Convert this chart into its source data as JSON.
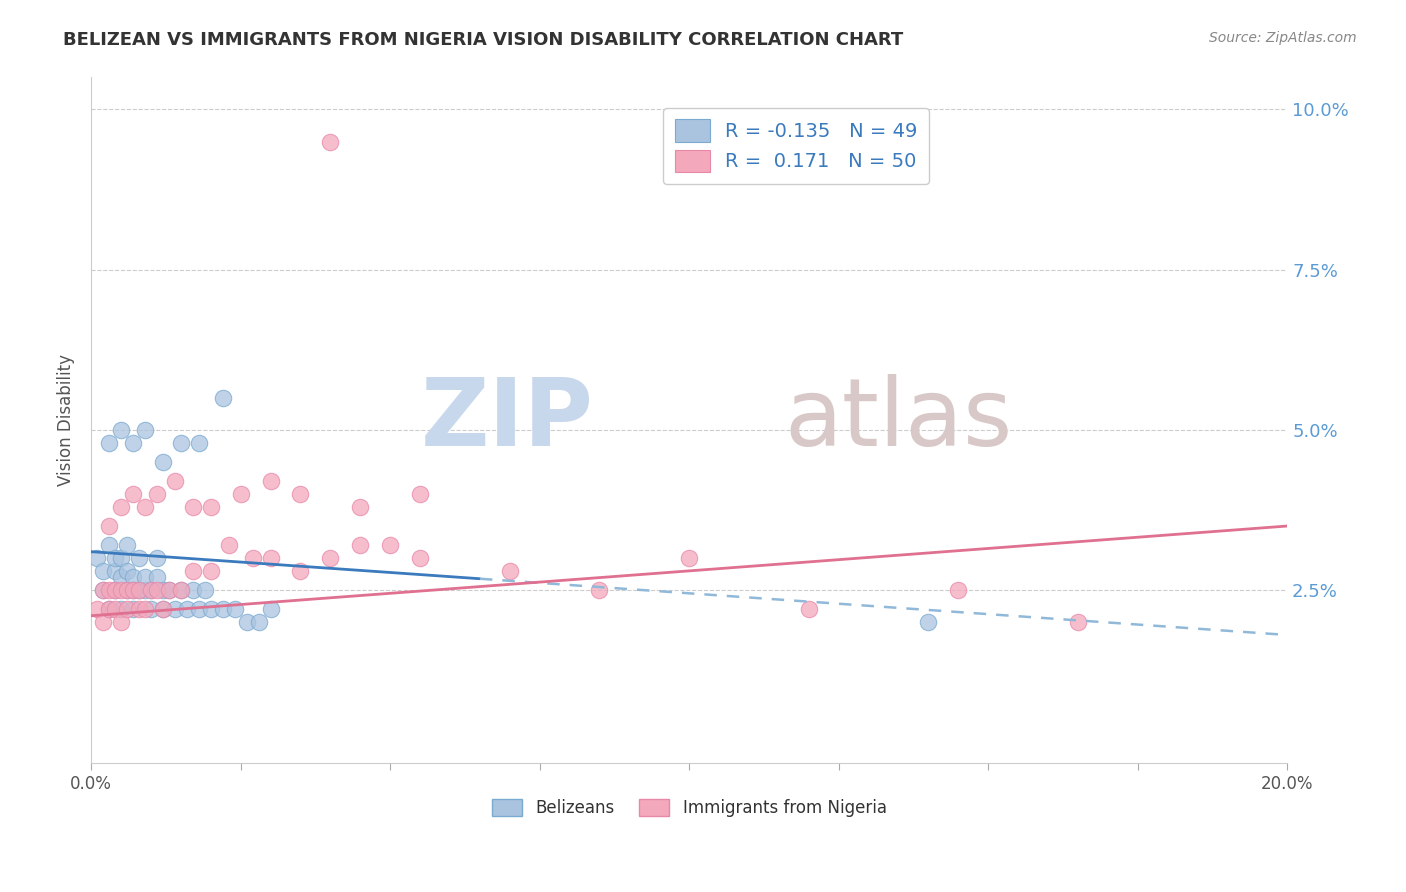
{
  "title": "BELIZEAN VS IMMIGRANTS FROM NIGERIA VISION DISABILITY CORRELATION CHART",
  "source": "Source: ZipAtlas.com",
  "ylabel": "Vision Disability",
  "watermark_zip": "ZIP",
  "watermark_atlas": "atlas",
  "series1_name": "Belizeans",
  "series1_color": "#aac4e0",
  "series1_edge": "#7aaad0",
  "series1_R": -0.135,
  "series1_N": 49,
  "series2_name": "Immigrants from Nigeria",
  "series2_color": "#f4a8bc",
  "series2_edge": "#e888a8",
  "series2_R": 0.171,
  "series2_N": 50,
  "line1_color": "#3a7abd",
  "line1_dash_color": "#90b8d8",
  "line2_color": "#e07090",
  "xlim": [
    0.0,
    0.2
  ],
  "ylim": [
    -0.002,
    0.105
  ],
  "xtick_positions": [
    0.0,
    0.025,
    0.05,
    0.075,
    0.1,
    0.125,
    0.15,
    0.175,
    0.2
  ],
  "xtick_labels": [
    "0.0%",
    "",
    "",
    "",
    "",
    "",
    "",
    "",
    "20.0%"
  ],
  "ytick_vals": [
    0.025,
    0.05,
    0.075,
    0.1
  ],
  "ytick_labels": [
    "2.5%",
    "5.0%",
    "7.5%",
    "10.0%"
  ],
  "background_color": "#ffffff",
  "grid_color": "#cccccc",
  "title_color": "#333333",
  "source_color": "#888888",
  "belizean_x": [
    0.001,
    0.002,
    0.002,
    0.003,
    0.003,
    0.004,
    0.004,
    0.004,
    0.005,
    0.005,
    0.005,
    0.006,
    0.006,
    0.006,
    0.007,
    0.007,
    0.007,
    0.008,
    0.008,
    0.009,
    0.009,
    0.01,
    0.01,
    0.011,
    0.011,
    0.012,
    0.012,
    0.013,
    0.014,
    0.015,
    0.016,
    0.017,
    0.018,
    0.019,
    0.02,
    0.022,
    0.024,
    0.026,
    0.028,
    0.03,
    0.003,
    0.005,
    0.007,
    0.009,
    0.012,
    0.015,
    0.018,
    0.022,
    0.14
  ],
  "belizean_y": [
    0.03,
    0.028,
    0.025,
    0.032,
    0.022,
    0.025,
    0.028,
    0.03,
    0.027,
    0.03,
    0.022,
    0.025,
    0.028,
    0.032,
    0.027,
    0.025,
    0.022,
    0.025,
    0.03,
    0.025,
    0.027,
    0.022,
    0.025,
    0.027,
    0.03,
    0.025,
    0.022,
    0.025,
    0.022,
    0.025,
    0.022,
    0.025,
    0.022,
    0.025,
    0.022,
    0.022,
    0.022,
    0.02,
    0.02,
    0.022,
    0.048,
    0.05,
    0.048,
    0.05,
    0.045,
    0.048,
    0.048,
    0.055,
    0.02
  ],
  "nigeria_x": [
    0.001,
    0.002,
    0.002,
    0.003,
    0.003,
    0.004,
    0.004,
    0.005,
    0.005,
    0.006,
    0.006,
    0.007,
    0.008,
    0.008,
    0.009,
    0.01,
    0.011,
    0.012,
    0.013,
    0.015,
    0.017,
    0.02,
    0.023,
    0.027,
    0.03,
    0.035,
    0.04,
    0.045,
    0.05,
    0.055,
    0.003,
    0.005,
    0.007,
    0.009,
    0.011,
    0.014,
    0.017,
    0.02,
    0.025,
    0.03,
    0.035,
    0.045,
    0.055,
    0.07,
    0.085,
    0.1,
    0.12,
    0.145,
    0.165,
    0.04
  ],
  "nigeria_y": [
    0.022,
    0.025,
    0.02,
    0.025,
    0.022,
    0.025,
    0.022,
    0.02,
    0.025,
    0.022,
    0.025,
    0.025,
    0.022,
    0.025,
    0.022,
    0.025,
    0.025,
    0.022,
    0.025,
    0.025,
    0.028,
    0.028,
    0.032,
    0.03,
    0.03,
    0.028,
    0.03,
    0.032,
    0.032,
    0.03,
    0.035,
    0.038,
    0.04,
    0.038,
    0.04,
    0.042,
    0.038,
    0.038,
    0.04,
    0.042,
    0.04,
    0.038,
    0.04,
    0.028,
    0.025,
    0.03,
    0.022,
    0.025,
    0.02,
    0.095
  ]
}
